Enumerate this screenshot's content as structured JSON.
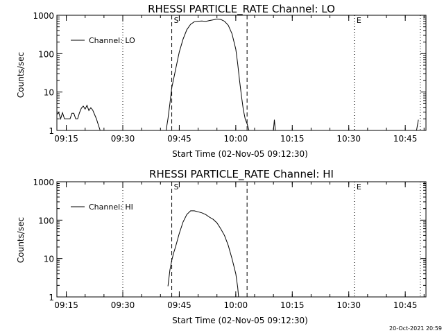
{
  "chart_data": [
    {
      "type": "line",
      "title": "RHESSI PARTICLE_RATE Channel: LO",
      "xlabel": "Start Time (02-Nov-05 09:12:30)",
      "ylabel": "Counts/sec",
      "yscale": "log",
      "ylim": [
        1,
        1000
      ],
      "xlim": [
        "09:12:30",
        "10:50:30"
      ],
      "x_ticks": [
        "09:15",
        "09:30",
        "09:45",
        "10:00",
        "10:15",
        "10:30",
        "10:45"
      ],
      "y_ticks": [
        "1",
        "10",
        "100",
        "1000"
      ],
      "legend": {
        "label": "Channel: LO",
        "position": "top-left"
      },
      "markers": [
        {
          "label": "S",
          "time": "09:43:00",
          "style": "dashed"
        },
        {
          "label": "",
          "time": "10:03:00",
          "style": "dashed"
        },
        {
          "label": "E",
          "time": "10:31:30",
          "style": "dotted"
        }
      ],
      "gridlines": [
        {
          "time": "09:30:00",
          "style": "dotted"
        },
        {
          "time": "10:31:30",
          "style": "dotted"
        },
        {
          "time": "10:49:00",
          "style": "dotted"
        }
      ],
      "series": [
        {
          "name": "Channel: LO",
          "segments": [
            [
              {
                "x": "09:12:30",
                "y": 2.6
              },
              {
                "x": "09:13:00",
                "y": 2.9
              },
              {
                "x": "09:13:30",
                "y": 2.0
              },
              {
                "x": "09:14:00",
                "y": 2.9
              },
              {
                "x": "09:14:30",
                "y": 2.0
              },
              {
                "x": "09:15:30",
                "y": 2.0
              },
              {
                "x": "09:16:00",
                "y": 2.0
              },
              {
                "x": "09:16:30",
                "y": 2.8
              },
              {
                "x": "09:17:00",
                "y": 2.8
              },
              {
                "x": "09:17:30",
                "y": 2.0
              },
              {
                "x": "09:18:00",
                "y": 2.0
              },
              {
                "x": "09:18:30",
                "y": 2.9
              },
              {
                "x": "09:19:00",
                "y": 3.8
              },
              {
                "x": "09:19:30",
                "y": 4.3
              },
              {
                "x": "09:20:00",
                "y": 3.6
              },
              {
                "x": "09:20:30",
                "y": 4.5
              },
              {
                "x": "09:21:00",
                "y": 3.3
              },
              {
                "x": "09:21:30",
                "y": 3.9
              },
              {
                "x": "09:22:00",
                "y": 3.4
              },
              {
                "x": "09:22:30",
                "y": 2.6
              },
              {
                "x": "09:23:00",
                "y": 2.0
              },
              {
                "x": "09:23:30",
                "y": 1.4
              },
              {
                "x": "09:24:00",
                "y": 1.0
              }
            ],
            [
              {
                "x": "09:41:30",
                "y": 1.0
              },
              {
                "x": "09:42:00",
                "y": 2.0
              },
              {
                "x": "09:42:30",
                "y": 5.0
              },
              {
                "x": "09:43:00",
                "y": 13
              },
              {
                "x": "09:43:30",
                "y": 22
              },
              {
                "x": "09:44:00",
                "y": 38
              },
              {
                "x": "09:45:00",
                "y": 110
              },
              {
                "x": "09:46:00",
                "y": 240
              },
              {
                "x": "09:47:00",
                "y": 420
              },
              {
                "x": "09:48:00",
                "y": 580
              },
              {
                "x": "09:49:00",
                "y": 680
              },
              {
                "x": "09:50:00",
                "y": 700
              },
              {
                "x": "09:51:00",
                "y": 710
              },
              {
                "x": "09:52:00",
                "y": 690
              },
              {
                "x": "09:53:00",
                "y": 730
              },
              {
                "x": "09:54:00",
                "y": 760
              },
              {
                "x": "09:55:00",
                "y": 800
              },
              {
                "x": "09:56:00",
                "y": 780
              },
              {
                "x": "09:57:00",
                "y": 700
              },
              {
                "x": "09:58:00",
                "y": 550
              },
              {
                "x": "09:59:00",
                "y": 330
              },
              {
                "x": "10:00:00",
                "y": 130
              },
              {
                "x": "10:00:30",
                "y": 55
              },
              {
                "x": "10:01:00",
                "y": 20
              },
              {
                "x": "10:01:30",
                "y": 8
              },
              {
                "x": "10:02:00",
                "y": 3.5
              },
              {
                "x": "10:02:30",
                "y": 2.0
              },
              {
                "x": "10:03:00",
                "y": 1.5
              },
              {
                "x": "10:03:30",
                "y": 1.0
              }
            ],
            [
              {
                "x": "10:10:00",
                "y": 1.0
              },
              {
                "x": "10:10:15",
                "y": 1.9
              },
              {
                "x": "10:10:30",
                "y": 1.0
              }
            ],
            [
              {
                "x": "10:48:00",
                "y": 1.0
              },
              {
                "x": "10:48:30",
                "y": 1.9
              }
            ]
          ]
        }
      ]
    },
    {
      "type": "line",
      "title": "RHESSI PARTICLE_RATE Channel: HI",
      "xlabel": "Start Time (02-Nov-05 09:12:30)",
      "ylabel": "Counts/sec",
      "yscale": "log",
      "ylim": [
        1,
        1000
      ],
      "xlim": [
        "09:12:30",
        "10:50:30"
      ],
      "x_ticks": [
        "09:15",
        "09:30",
        "09:45",
        "10:00",
        "10:15",
        "10:30",
        "10:45"
      ],
      "y_ticks": [
        "1",
        "10",
        "100",
        "1000"
      ],
      "legend": {
        "label": "Channel: HI",
        "position": "top-left"
      },
      "markers": [
        {
          "label": "S",
          "time": "09:43:00",
          "style": "dashed"
        },
        {
          "label": "",
          "time": "10:03:00",
          "style": "dashed"
        },
        {
          "label": "E",
          "time": "10:31:30",
          "style": "dotted"
        }
      ],
      "gridlines": [
        {
          "time": "09:30:00",
          "style": "dotted"
        },
        {
          "time": "10:31:30",
          "style": "dotted"
        },
        {
          "time": "10:49:00",
          "style": "dotted"
        }
      ],
      "series": [
        {
          "name": "Channel: HI",
          "segments": [
            [
              {
                "x": "09:42:00",
                "y": 1.9
              },
              {
                "x": "09:42:30",
                "y": 5.0
              },
              {
                "x": "09:43:00",
                "y": 9.0
              },
              {
                "x": "09:43:30",
                "y": 14
              },
              {
                "x": "09:44:00",
                "y": 20
              },
              {
                "x": "09:45:00",
                "y": 45
              },
              {
                "x": "09:46:00",
                "y": 90
              },
              {
                "x": "09:47:00",
                "y": 140
              },
              {
                "x": "09:48:00",
                "y": 175
              },
              {
                "x": "09:49:00",
                "y": 175
              },
              {
                "x": "09:50:00",
                "y": 165
              },
              {
                "x": "09:51:00",
                "y": 155
              },
              {
                "x": "09:52:00",
                "y": 140
              },
              {
                "x": "09:53:00",
                "y": 120
              },
              {
                "x": "09:54:00",
                "y": 105
              },
              {
                "x": "09:55:00",
                "y": 85
              },
              {
                "x": "09:56:00",
                "y": 60
              },
              {
                "x": "09:57:00",
                "y": 40
              },
              {
                "x": "09:58:00",
                "y": 22
              },
              {
                "x": "09:59:00",
                "y": 10
              },
              {
                "x": "10:00:00",
                "y": 4
              },
              {
                "x": "10:00:30",
                "y": 1.8
              },
              {
                "x": "10:00:45",
                "y": 1.0
              }
            ]
          ]
        }
      ]
    }
  ],
  "footer": {
    "timestamp": "20-Oct-2021 20:59"
  }
}
